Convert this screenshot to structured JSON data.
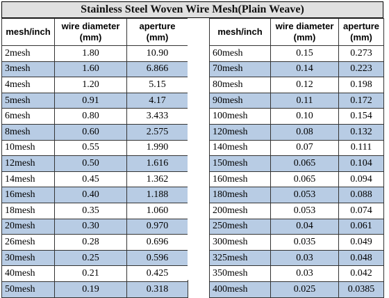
{
  "title": "Stainless Steel Woven Wire Mesh(Plain Weave)",
  "headers": {
    "mesh": "mesh/inch",
    "wire": "wire diameter (mm)",
    "aperture": "aperture (mm)"
  },
  "left_rows": [
    {
      "mesh": "2mesh",
      "wire": "1.80",
      "aperture": "10.90"
    },
    {
      "mesh": "3mesh",
      "wire": "1.60",
      "aperture": "6.866"
    },
    {
      "mesh": "4mesh",
      "wire": "1.20",
      "aperture": "5.15"
    },
    {
      "mesh": "5mesh",
      "wire": "0.91",
      "aperture": "4.17"
    },
    {
      "mesh": "6mesh",
      "wire": "0.80",
      "aperture": "3.433"
    },
    {
      "mesh": "8mesh",
      "wire": "0.60",
      "aperture": "2.575"
    },
    {
      "mesh": "10mesh",
      "wire": "0.55",
      "aperture": "1.990"
    },
    {
      "mesh": "12mesh",
      "wire": "0.50",
      "aperture": "1.616"
    },
    {
      "mesh": "14mesh",
      "wire": "0.45",
      "aperture": "1.362"
    },
    {
      "mesh": "16mesh",
      "wire": "0.40",
      "aperture": "1.188"
    },
    {
      "mesh": "18mesh",
      "wire": "0.35",
      "aperture": "1.060"
    },
    {
      "mesh": "20mesh",
      "wire": "0.30",
      "aperture": "0.970"
    },
    {
      "mesh": "26mesh",
      "wire": "0.28",
      "aperture": "0.696"
    },
    {
      "mesh": "30mesh",
      "wire": "0.25",
      "aperture": "0.596"
    },
    {
      "mesh": "40mesh",
      "wire": "0.21",
      "aperture": "0.425"
    },
    {
      "mesh": "50mesh",
      "wire": "0.19",
      "aperture": "0.318"
    }
  ],
  "right_rows": [
    {
      "mesh": "60mesh",
      "wire": "0.15",
      "aperture": "0.273"
    },
    {
      "mesh": "70mesh",
      "wire": "0.14",
      "aperture": "0.223"
    },
    {
      "mesh": "80mesh",
      "wire": "0.12",
      "aperture": "0.198"
    },
    {
      "mesh": "90mesh",
      "wire": "0.11",
      "aperture": "0.172"
    },
    {
      "mesh": "100mesh",
      "wire": "0.10",
      "aperture": "0.154"
    },
    {
      "mesh": "120mesh",
      "wire": "0.08",
      "aperture": "0.132"
    },
    {
      "mesh": "140mesh",
      "wire": "0.07",
      "aperture": "0.111"
    },
    {
      "mesh": "150mesh",
      "wire": "0.065",
      "aperture": "0.104"
    },
    {
      "mesh": "160mesh",
      "wire": "0.065",
      "aperture": "0.094"
    },
    {
      "mesh": "180mesh",
      "wire": "0.053",
      "aperture": "0.088"
    },
    {
      "mesh": "200mesh",
      "wire": "0.053",
      "aperture": "0.074"
    },
    {
      "mesh": "250mesh",
      "wire": "0.04",
      "aperture": "0.061"
    },
    {
      "mesh": "300mesh",
      "wire": "0.035",
      "aperture": "0.049"
    },
    {
      "mesh": "325mesh",
      "wire": "0.03",
      "aperture": "0.048"
    },
    {
      "mesh": "350mesh",
      "wire": "0.03",
      "aperture": "0.042"
    },
    {
      "mesh": "400mesh",
      "wire": "0.025",
      "aperture": "0.0385"
    }
  ],
  "colors": {
    "shaded_row": "#b8cce4",
    "plain_row": "#ffffff",
    "title_background": "#e0e0e0"
  }
}
